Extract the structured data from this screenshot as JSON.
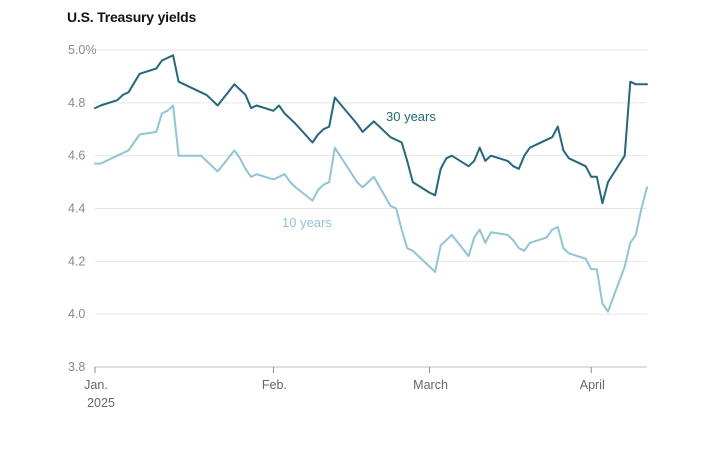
{
  "chart_data": {
    "type": "line",
    "title": "U.S. Treasury yields",
    "ylim": [
      3.8,
      5.0
    ],
    "y_ticks": [
      {
        "value": 5.0,
        "label": "5.0%"
      },
      {
        "value": 4.8,
        "label": "4.8"
      },
      {
        "value": 4.6,
        "label": "4.6"
      },
      {
        "value": 4.4,
        "label": "4.4"
      },
      {
        "value": 4.2,
        "label": "4.2"
      },
      {
        "value": 4.0,
        "label": "4.0"
      },
      {
        "value": 3.8,
        "label": "3.8"
      }
    ],
    "x_range": [
      "2025-01-02",
      "2025-04-11"
    ],
    "x_ticks": [
      {
        "date": "2025-01-02",
        "label": "Jan.",
        "sublabel": "2025"
      },
      {
        "date": "2025-02-03",
        "label": "Feb.",
        "sublabel": ""
      },
      {
        "date": "2025-03-03",
        "label": "March",
        "sublabel": ""
      },
      {
        "date": "2025-04-01",
        "label": "April",
        "sublabel": ""
      }
    ],
    "grid": true,
    "x": [
      "2025-01-02",
      "2025-01-03",
      "2025-01-06",
      "2025-01-07",
      "2025-01-08",
      "2025-01-10",
      "2025-01-13",
      "2025-01-14",
      "2025-01-15",
      "2025-01-16",
      "2025-01-17",
      "2025-01-21",
      "2025-01-22",
      "2025-01-23",
      "2025-01-24",
      "2025-01-27",
      "2025-01-28",
      "2025-01-29",
      "2025-01-30",
      "2025-01-31",
      "2025-02-03",
      "2025-02-04",
      "2025-02-05",
      "2025-02-06",
      "2025-02-07",
      "2025-02-10",
      "2025-02-11",
      "2025-02-12",
      "2025-02-13",
      "2025-02-14",
      "2025-02-18",
      "2025-02-19",
      "2025-02-20",
      "2025-02-21",
      "2025-02-24",
      "2025-02-25",
      "2025-02-26",
      "2025-02-27",
      "2025-02-28",
      "2025-03-03",
      "2025-03-04",
      "2025-03-05",
      "2025-03-06",
      "2025-03-07",
      "2025-03-10",
      "2025-03-11",
      "2025-03-12",
      "2025-03-13",
      "2025-03-14",
      "2025-03-17",
      "2025-03-18",
      "2025-03-19",
      "2025-03-20",
      "2025-03-21",
      "2025-03-24",
      "2025-03-25",
      "2025-03-26",
      "2025-03-27",
      "2025-03-28",
      "2025-03-31",
      "2025-04-01",
      "2025-04-02",
      "2025-04-03",
      "2025-04-04",
      "2025-04-07",
      "2025-04-08",
      "2025-04-09",
      "2025-04-10",
      "2025-04-11"
    ],
    "series": [
      {
        "name": "30 years",
        "color": "#1f6a80",
        "values": [
          4.78,
          4.79,
          4.81,
          4.83,
          4.84,
          4.91,
          4.93,
          4.96,
          4.97,
          4.98,
          4.88,
          4.84,
          4.83,
          4.81,
          4.79,
          4.87,
          4.85,
          4.83,
          4.78,
          4.79,
          4.77,
          4.79,
          4.76,
          4.74,
          4.72,
          4.65,
          4.68,
          4.7,
          4.71,
          4.82,
          4.72,
          4.69,
          4.71,
          4.73,
          4.67,
          4.66,
          4.65,
          4.58,
          4.5,
          4.46,
          4.45,
          4.55,
          4.59,
          4.6,
          4.56,
          4.58,
          4.63,
          4.58,
          4.6,
          4.58,
          4.56,
          4.55,
          4.6,
          4.63,
          4.66,
          4.67,
          4.71,
          4.62,
          4.59,
          4.56,
          4.52,
          4.52,
          4.42,
          4.5,
          4.6,
          4.88,
          4.87,
          4.87,
          4.87
        ]
      },
      {
        "name": "10 years",
        "color": "#8cc5dc",
        "values": [
          4.57,
          4.57,
          4.6,
          4.61,
          4.62,
          4.68,
          4.69,
          4.76,
          4.77,
          4.79,
          4.6,
          4.6,
          4.58,
          4.56,
          4.54,
          4.62,
          4.59,
          4.55,
          4.52,
          4.53,
          4.51,
          4.52,
          4.53,
          4.5,
          4.48,
          4.43,
          4.47,
          4.49,
          4.5,
          4.63,
          4.5,
          4.48,
          4.5,
          4.52,
          4.41,
          4.4,
          4.32,
          4.25,
          4.24,
          4.18,
          4.16,
          4.26,
          4.28,
          4.3,
          4.22,
          4.29,
          4.32,
          4.27,
          4.31,
          4.3,
          4.28,
          4.25,
          4.24,
          4.27,
          4.29,
          4.32,
          4.33,
          4.25,
          4.23,
          4.21,
          4.17,
          4.17,
          4.04,
          4.01,
          4.18,
          4.27,
          4.3,
          4.4,
          4.48
        ]
      }
    ]
  }
}
